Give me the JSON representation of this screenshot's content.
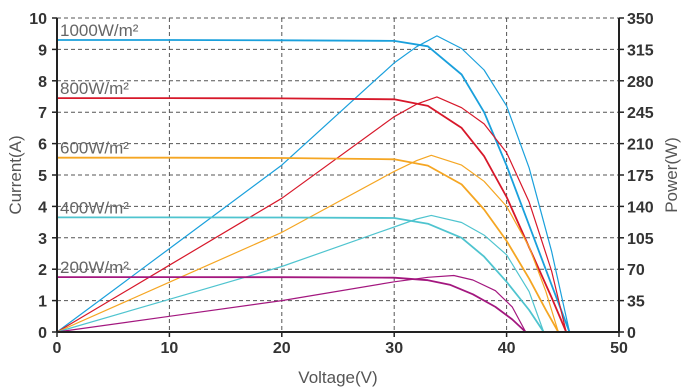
{
  "chart_data": {
    "type": "line",
    "xlabel": "Voltage(V)",
    "ylabel_left": "Current(A)",
    "ylabel_right": "Power(W)",
    "xlim": [
      0,
      50
    ],
    "ylim_left": [
      0,
      10
    ],
    "ylim_right": [
      0,
      350
    ],
    "x_ticks": [
      "0",
      "10",
      "20",
      "30",
      "40",
      "50"
    ],
    "y_left_ticks": [
      "0",
      "1",
      "2",
      "3",
      "4",
      "5",
      "6",
      "7",
      "8",
      "9",
      "10"
    ],
    "y_right_ticks": [
      "0",
      "35",
      "70",
      "105",
      "140",
      "175",
      "210",
      "245",
      "280",
      "315",
      "350"
    ],
    "grid": true,
    "series": [
      {
        "name": "1000W/m²",
        "color": "#1aa0dc",
        "isc": 9.3,
        "voc": 45.6,
        "pmax": 330,
        "vmp": 33.8,
        "iv": [
          [
            0,
            9.3
          ],
          [
            10,
            9.3
          ],
          [
            20,
            9.29
          ],
          [
            30,
            9.27
          ],
          [
            33,
            9.1
          ],
          [
            36,
            8.2
          ],
          [
            38,
            7.0
          ],
          [
            40,
            5.3
          ],
          [
            42,
            3.4
          ],
          [
            44,
            1.5
          ],
          [
            45.6,
            0
          ]
        ],
        "pv": [
          [
            0,
            0
          ],
          [
            10,
            93
          ],
          [
            20,
            186
          ],
          [
            30,
            300
          ],
          [
            32,
            318
          ],
          [
            33.8,
            330
          ],
          [
            36,
            316
          ],
          [
            38,
            292
          ],
          [
            40,
            252
          ],
          [
            42,
            183
          ],
          [
            44,
            90
          ],
          [
            45.6,
            0
          ]
        ]
      },
      {
        "name": "800W/m²",
        "color": "#d7182a",
        "isc": 7.45,
        "voc": 45.3,
        "pmax": 262,
        "vmp": 33.8,
        "iv": [
          [
            0,
            7.45
          ],
          [
            10,
            7.45
          ],
          [
            20,
            7.44
          ],
          [
            30,
            7.41
          ],
          [
            33,
            7.2
          ],
          [
            36,
            6.5
          ],
          [
            38,
            5.6
          ],
          [
            40,
            4.3
          ],
          [
            42,
            2.7
          ],
          [
            44,
            1.1
          ],
          [
            45.3,
            0
          ]
        ],
        "pv": [
          [
            0,
            0
          ],
          [
            10,
            74.5
          ],
          [
            20,
            149
          ],
          [
            30,
            240
          ],
          [
            32,
            254
          ],
          [
            33.8,
            262
          ],
          [
            36,
            250
          ],
          [
            38,
            232
          ],
          [
            40,
            200
          ],
          [
            42,
            145
          ],
          [
            44,
            68
          ],
          [
            45.3,
            0
          ]
        ]
      },
      {
        "name": "600W/m²",
        "color": "#f5a623",
        "isc": 5.55,
        "voc": 44.6,
        "pmax": 197,
        "vmp": 33.3,
        "iv": [
          [
            0,
            5.55
          ],
          [
            10,
            5.55
          ],
          [
            20,
            5.54
          ],
          [
            30,
            5.5
          ],
          [
            33,
            5.3
          ],
          [
            36,
            4.7
          ],
          [
            38,
            3.9
          ],
          [
            40,
            2.9
          ],
          [
            42,
            1.7
          ],
          [
            43.5,
            0.7
          ],
          [
            44.6,
            0
          ]
        ],
        "pv": [
          [
            0,
            0
          ],
          [
            10,
            55.5
          ],
          [
            20,
            111
          ],
          [
            30,
            179
          ],
          [
            32,
            191
          ],
          [
            33.3,
            197
          ],
          [
            36,
            186
          ],
          [
            38,
            168
          ],
          [
            40,
            140
          ],
          [
            42,
            95
          ],
          [
            43.5,
            45
          ],
          [
            44.6,
            0
          ]
        ]
      },
      {
        "name": "400W/m²",
        "color": "#4fc4cf",
        "isc": 3.65,
        "voc": 43.3,
        "pmax": 130,
        "vmp": 33.3,
        "iv": [
          [
            0,
            3.65
          ],
          [
            10,
            3.65
          ],
          [
            20,
            3.645
          ],
          [
            30,
            3.63
          ],
          [
            33,
            3.45
          ],
          [
            36,
            3.0
          ],
          [
            38,
            2.4
          ],
          [
            40,
            1.6
          ],
          [
            42,
            0.7
          ],
          [
            43.3,
            0
          ]
        ],
        "pv": [
          [
            0,
            0
          ],
          [
            10,
            36.5
          ],
          [
            20,
            73
          ],
          [
            30,
            117
          ],
          [
            32,
            126
          ],
          [
            33.3,
            130
          ],
          [
            36,
            122
          ],
          [
            38,
            108
          ],
          [
            40,
            86
          ],
          [
            42,
            45
          ],
          [
            43.3,
            0
          ]
        ]
      },
      {
        "name": "200W/m²",
        "color": "#a3177f",
        "isc": 1.75,
        "voc": 41.7,
        "pmax": 63,
        "vmp": 35.3,
        "iv": [
          [
            0,
            1.75
          ],
          [
            10,
            1.75
          ],
          [
            20,
            1.745
          ],
          [
            30,
            1.73
          ],
          [
            33,
            1.65
          ],
          [
            35,
            1.5
          ],
          [
            37,
            1.2
          ],
          [
            39,
            0.8
          ],
          [
            40.5,
            0.4
          ],
          [
            41.7,
            0
          ]
        ],
        "pv": [
          [
            0,
            0
          ],
          [
            10,
            17.5
          ],
          [
            20,
            35
          ],
          [
            30,
            56
          ],
          [
            33,
            61
          ],
          [
            35.3,
            63
          ],
          [
            37,
            58
          ],
          [
            39,
            46
          ],
          [
            40.5,
            28
          ],
          [
            41.7,
            0
          ]
        ]
      }
    ]
  }
}
